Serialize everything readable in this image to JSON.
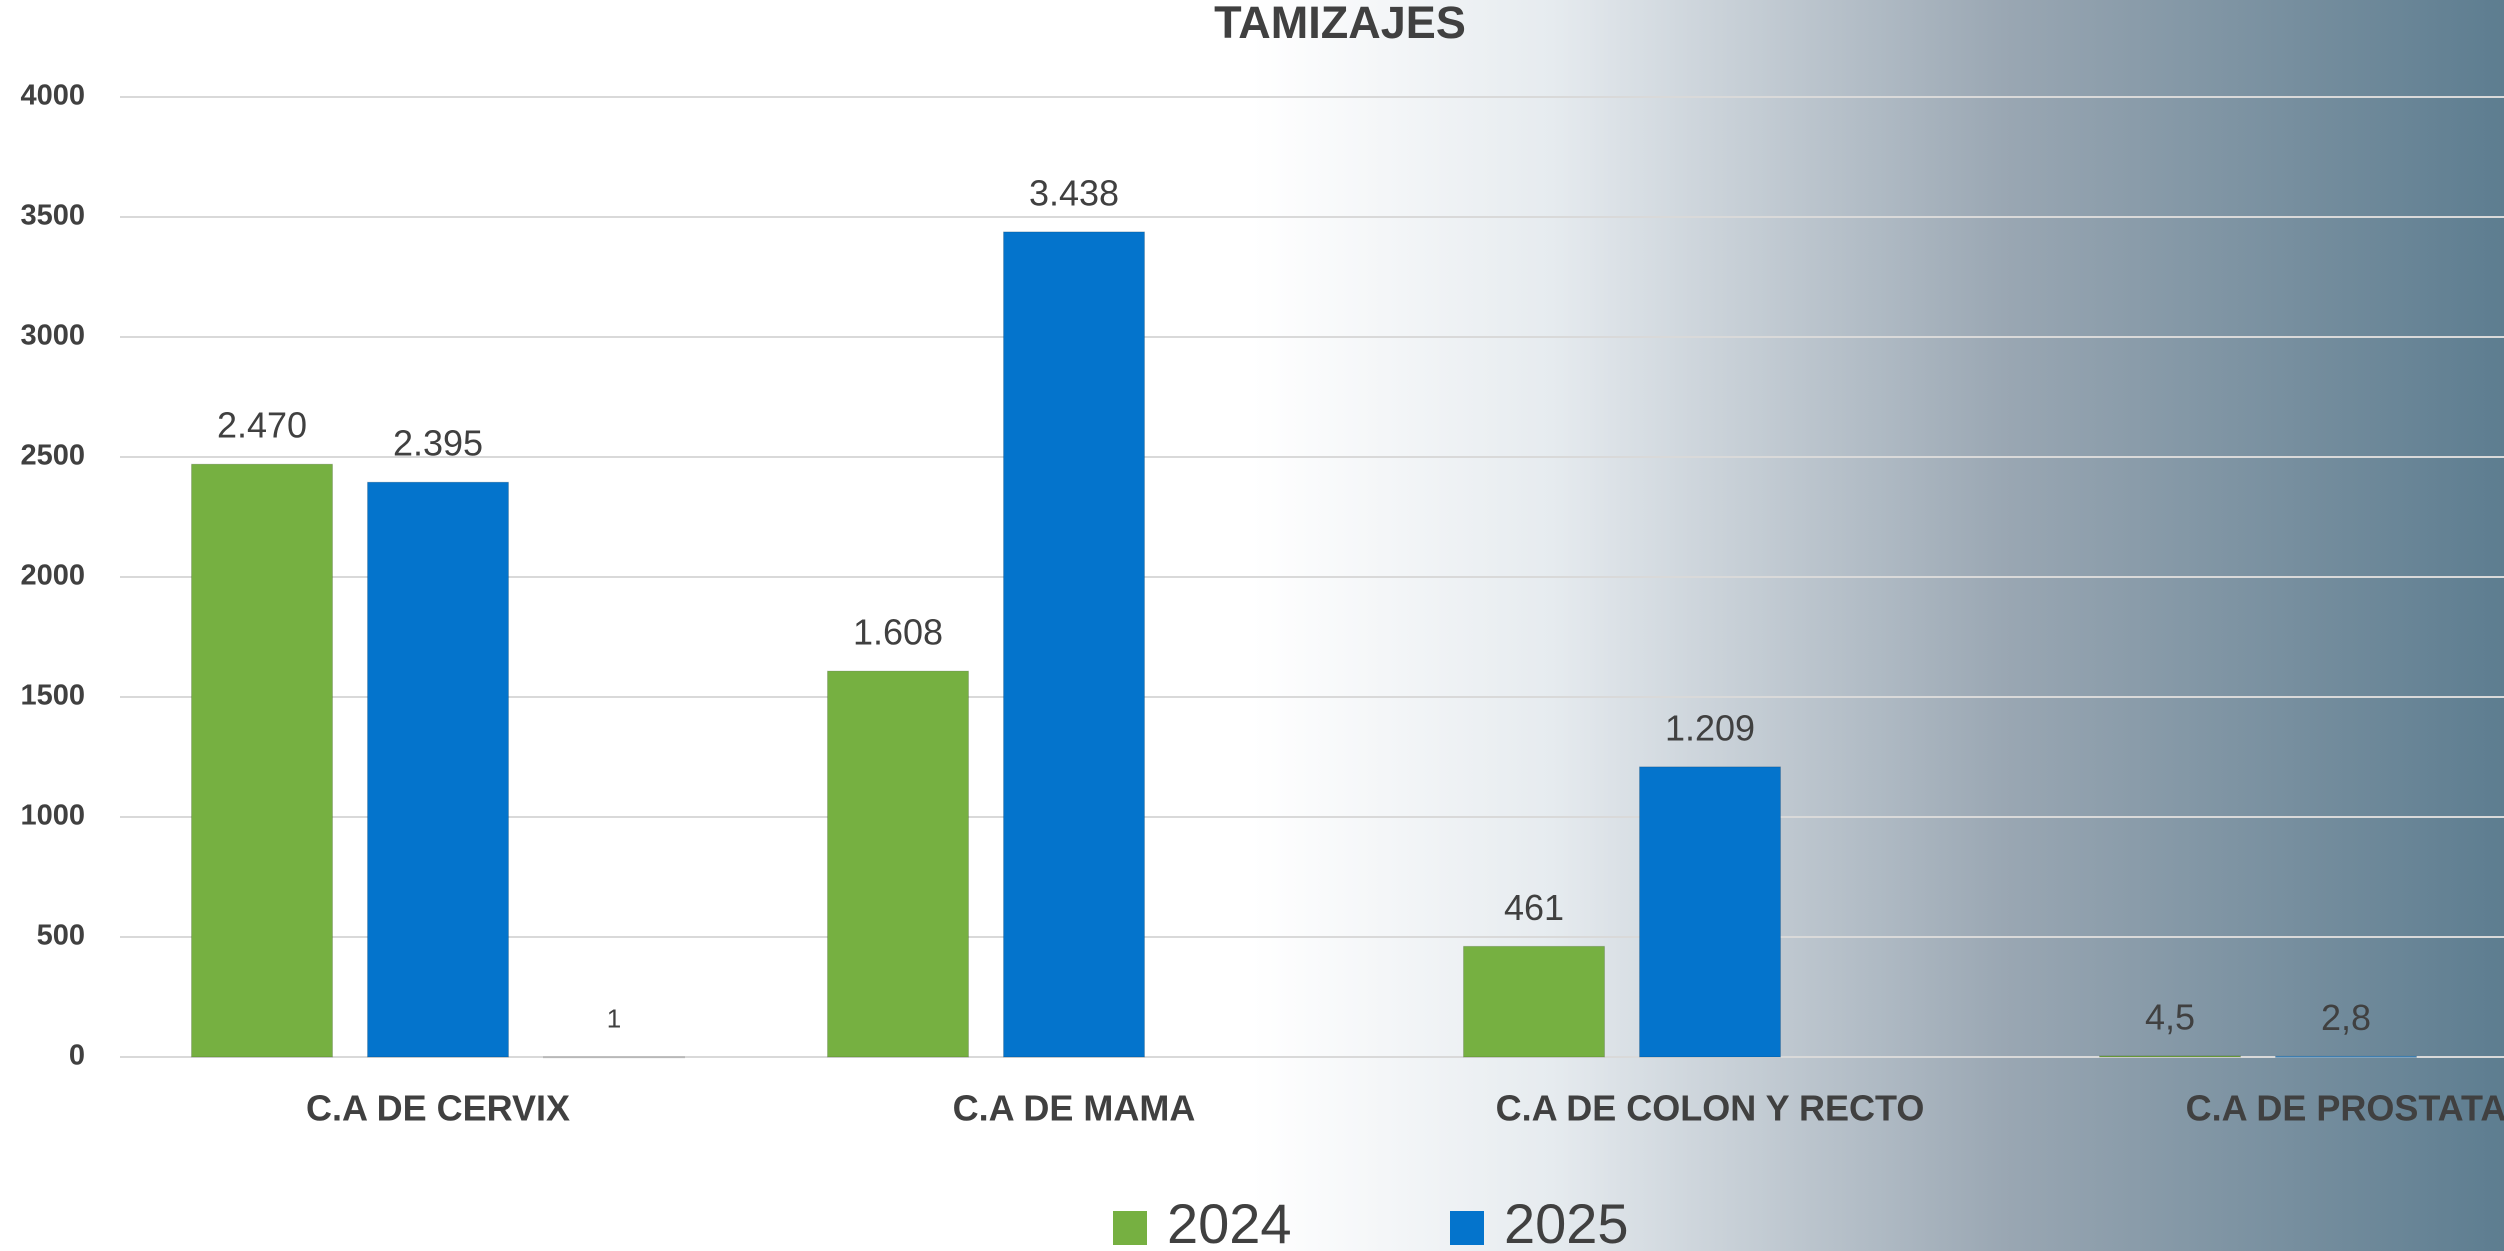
{
  "chart_data": {
    "type": "bar",
    "title": "TAMIZAJES",
    "categories": [
      "C.A DE CERVIX",
      "C.A DE MAMA",
      "C.A DE COLON Y RECTO",
      "C.A DE PROSTATA"
    ],
    "series": [
      {
        "name": "2024",
        "color": "#76b041",
        "values": [
          2470,
          1608,
          461,
          4.5
        ],
        "value_labels": [
          "2.470",
          "1.608",
          "461",
          "4,5"
        ]
      },
      {
        "name": "2025",
        "color": "#0474cc",
        "values": [
          2395,
          3438,
          1209,
          2.8
        ],
        "value_labels": [
          "2.395",
          "3.438",
          "1.209",
          "2,8"
        ]
      },
      {
        "color": "#d9d9d9",
        "values": [
          1,
          null,
          null,
          null
        ]
      }
    ],
    "ylim": [
      0,
      4000
    ],
    "yticks": [
      0,
      500,
      1000,
      1500,
      2000,
      2500,
      3000,
      3500,
      4000
    ],
    "grid": true,
    "legend": "bottom"
  }
}
